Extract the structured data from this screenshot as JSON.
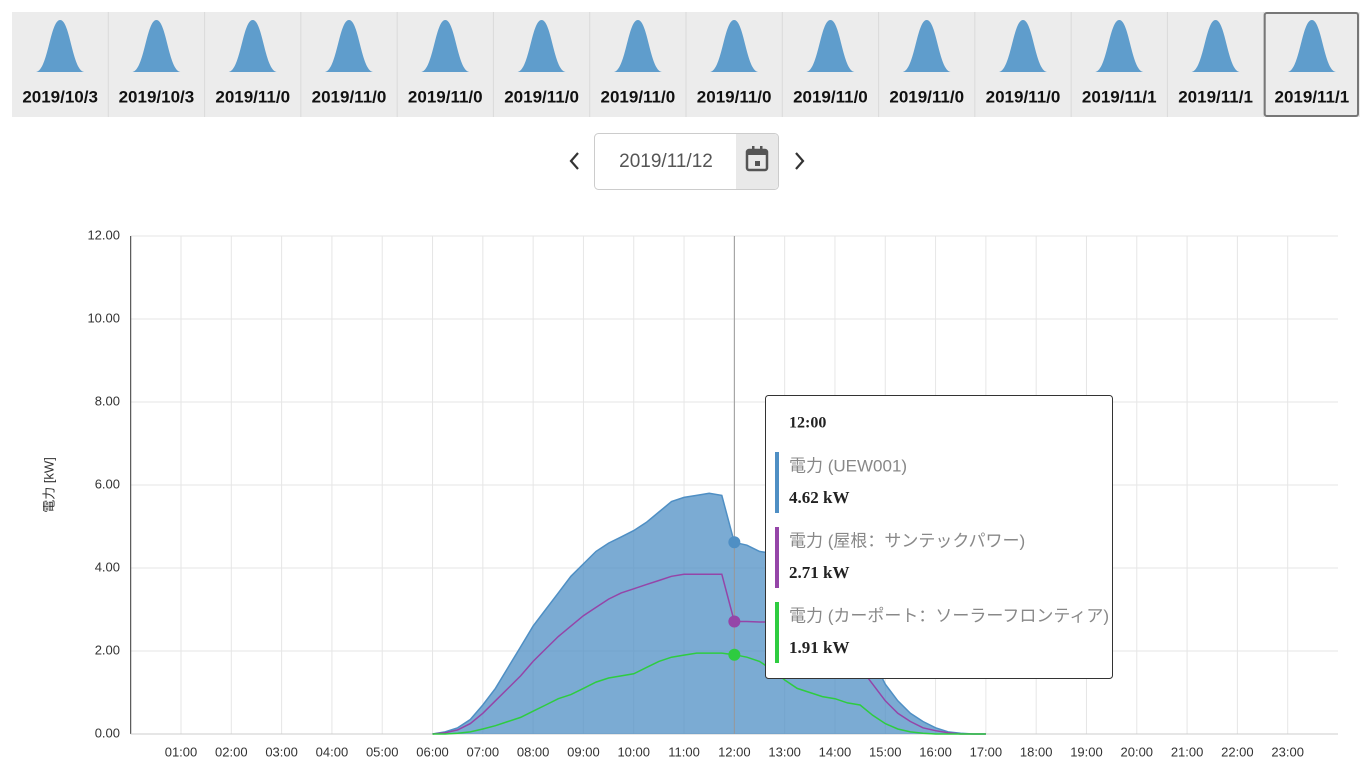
{
  "tabs": [
    "2019/10/3",
    "2019/10/3",
    "2019/11/0",
    "2019/11/0",
    "2019/11/0",
    "2019/11/0",
    "2019/11/0",
    "2019/11/0",
    "2019/11/0",
    "2019/11/0",
    "2019/11/0",
    "2019/11/1",
    "2019/11/1",
    "2019/11/1"
  ],
  "date_picker": {
    "value": "2019/11/12"
  },
  "chart_data": {
    "type": "line",
    "y_label": "電力 [kW]",
    "xlim": [
      0,
      24
    ],
    "xticks": [
      {
        "value": 1,
        "label": "01:00"
      },
      {
        "value": 2,
        "label": "02:00"
      },
      {
        "value": 3,
        "label": "03:00"
      },
      {
        "value": 4,
        "label": "04:00"
      },
      {
        "value": 5,
        "label": "05:00"
      },
      {
        "value": 6,
        "label": "06:00"
      },
      {
        "value": 7,
        "label": "07:00"
      },
      {
        "value": 8,
        "label": "08:00"
      },
      {
        "value": 9,
        "label": "09:00"
      },
      {
        "value": 10,
        "label": "10:00"
      },
      {
        "value": 11,
        "label": "11:00"
      },
      {
        "value": 12,
        "label": "12:00"
      },
      {
        "value": 13,
        "label": "13:00"
      },
      {
        "value": 14,
        "label": "14:00"
      },
      {
        "value": 15,
        "label": "15:00"
      },
      {
        "value": 16,
        "label": "16:00"
      },
      {
        "value": 17,
        "label": "17:00"
      },
      {
        "value": 18,
        "label": "18:00"
      },
      {
        "value": 19,
        "label": "19:00"
      },
      {
        "value": 20,
        "label": "20:00"
      },
      {
        "value": 21,
        "label": "21:00"
      },
      {
        "value": 22,
        "label": "22:00"
      },
      {
        "value": 23,
        "label": "23:00"
      }
    ],
    "ylim": [
      0,
      12
    ],
    "yticks": [
      {
        "value": 0,
        "label": "0.00"
      },
      {
        "value": 2,
        "label": "2.00"
      },
      {
        "value": 4,
        "label": "4.00"
      },
      {
        "value": 6,
        "label": "6.00"
      },
      {
        "value": 8,
        "label": "8.00"
      },
      {
        "value": 10,
        "label": "10.00"
      },
      {
        "value": 12,
        "label": "12.00"
      }
    ],
    "grid": true,
    "x": [
      6,
      6.25,
      6.5,
      6.75,
      7,
      7.25,
      7.5,
      7.75,
      8,
      8.25,
      8.5,
      8.75,
      9,
      9.25,
      9.5,
      9.75,
      10,
      10.25,
      10.5,
      10.75,
      11,
      11.25,
      11.5,
      11.75,
      12,
      12.25,
      12.5,
      12.75,
      13,
      13.25,
      13.5,
      13.75,
      14,
      14.25,
      14.5,
      14.75,
      15,
      15.25,
      15.5,
      15.75,
      16,
      16.25,
      16.5,
      16.75,
      17
    ],
    "series": [
      {
        "name": "電力 (UEW001)",
        "color": "#4f8fc4",
        "area": true,
        "values": [
          0,
          0.05,
          0.15,
          0.35,
          0.7,
          1.1,
          1.6,
          2.1,
          2.6,
          3.0,
          3.4,
          3.8,
          4.1,
          4.4,
          4.6,
          4.75,
          4.9,
          5.1,
          5.35,
          5.6,
          5.7,
          5.75,
          5.8,
          5.75,
          4.62,
          4.55,
          4.4,
          4.35,
          4.3,
          4.2,
          4.0,
          3.6,
          3.3,
          2.9,
          2.4,
          1.8,
          1.2,
          0.8,
          0.5,
          0.3,
          0.15,
          0.05,
          0.02,
          0,
          0
        ]
      },
      {
        "name": "電力 (屋根：サンテックパワー)",
        "color": "#9545a8",
        "area": false,
        "values": [
          0,
          0.03,
          0.1,
          0.25,
          0.5,
          0.8,
          1.1,
          1.4,
          1.75,
          2.05,
          2.35,
          2.6,
          2.85,
          3.05,
          3.25,
          3.4,
          3.5,
          3.6,
          3.7,
          3.8,
          3.85,
          3.85,
          3.85,
          3.85,
          2.71,
          2.71,
          2.7,
          2.7,
          2.65,
          2.6,
          2.5,
          2.35,
          2.2,
          1.95,
          1.6,
          1.2,
          0.8,
          0.5,
          0.3,
          0.15,
          0.08,
          0.03,
          0,
          0,
          0
        ]
      },
      {
        "name": "電力 (カーポート：ソーラーフロンティア)",
        "color": "#2ecc40",
        "area": false,
        "values": [
          0,
          0,
          0.02,
          0.05,
          0.12,
          0.2,
          0.3,
          0.4,
          0.55,
          0.7,
          0.85,
          0.95,
          1.1,
          1.25,
          1.35,
          1.4,
          1.45,
          1.6,
          1.75,
          1.85,
          1.9,
          1.95,
          1.95,
          1.95,
          1.91,
          1.85,
          1.75,
          1.55,
          1.3,
          1.1,
          1.0,
          0.9,
          0.85,
          0.75,
          0.7,
          0.45,
          0.25,
          0.12,
          0.05,
          0.02,
          0,
          0,
          0,
          0,
          0
        ]
      }
    ],
    "tooltip": {
      "x": 12,
      "title": "12:00",
      "value_labels": [
        "4.62 kW",
        "2.71 kW",
        "1.91 kW"
      ]
    }
  }
}
